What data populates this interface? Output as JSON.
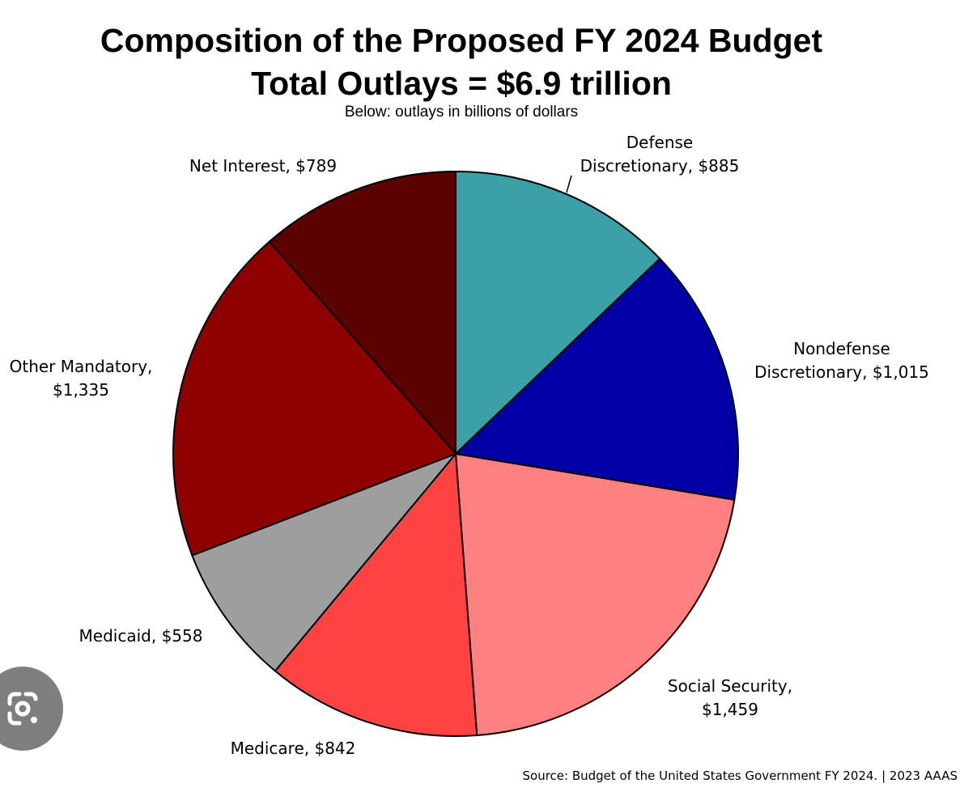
{
  "chart_data": {
    "type": "pie",
    "title": "Composition of the Proposed FY 2024 Budget",
    "subtitle_line": "Total Outlays = $6.9 trillion",
    "note": "Below: outlays in billions of dollars",
    "source": "Source: Budget of the United States Government FY 2024. | 2023 AAAS",
    "slices": [
      {
        "key": "defense",
        "label_lines": [
          "Defense",
          "Discretionary, $885"
        ],
        "value": 885,
        "color": "#3ba1a6"
      },
      {
        "key": "nondefense",
        "label_lines": [
          "Nondefense",
          "Discretionary, $1,015"
        ],
        "value": 1015,
        "color": "#0000a6"
      },
      {
        "key": "social-security",
        "label_lines": [
          "Social Security,",
          "$1,459"
        ],
        "value": 1459,
        "color": "#ff8080"
      },
      {
        "key": "medicare",
        "label_lines": [
          "Medicare, $842"
        ],
        "value": 842,
        "color": "#ff4242"
      },
      {
        "key": "medicaid",
        "label_lines": [
          "Medicaid, $558"
        ],
        "value": 558,
        "color": "#9e9e9e"
      },
      {
        "key": "other-mandatory",
        "label_lines": [
          "Other Mandatory,",
          "$1,335"
        ],
        "value": 1335,
        "color": "#8e0000"
      },
      {
        "key": "net-interest",
        "label_lines": [
          "Net Interest, $789"
        ],
        "value": 789,
        "color": "#5c0000"
      }
    ]
  },
  "icons": {
    "lens": "google-lens-icon"
  }
}
